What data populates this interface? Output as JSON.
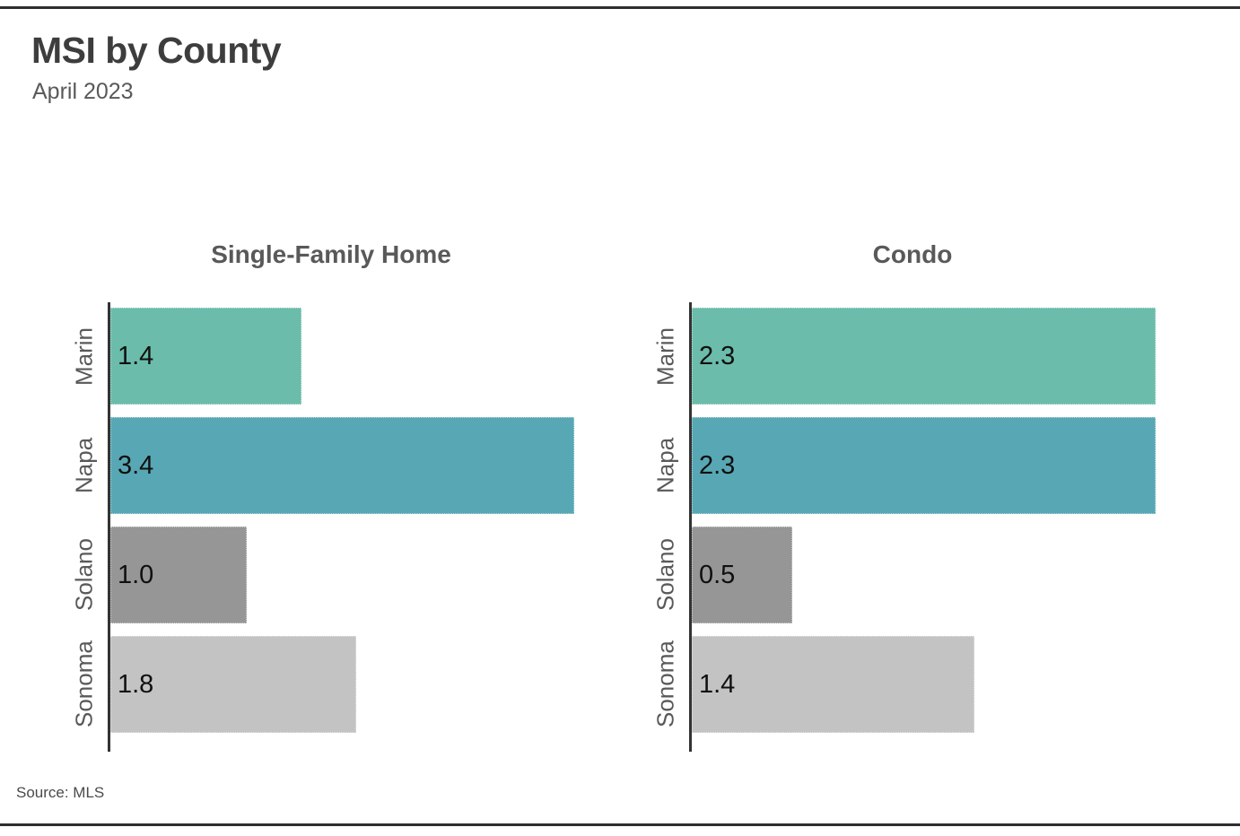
{
  "page": {
    "title": "MSI by County",
    "subtitle": "April 2023",
    "source": "Source: MLS"
  },
  "colors": {
    "teal": "#6bbcab",
    "blue_teal": "#58a7b4",
    "dark_gray": "#969696",
    "light_gray": "#c3c3c3",
    "axis": "#333333",
    "rule": "#2e2e2e",
    "title_text": "#3d3d3d",
    "label_text": "#595959"
  },
  "chart_data": [
    {
      "type": "bar",
      "orientation": "horizontal",
      "title": "Single-Family Home",
      "categories": [
        "Marin",
        "Napa",
        "Solano",
        "Sonoma"
      ],
      "values": [
        1.4,
        3.4,
        1.0,
        1.8
      ],
      "value_labels": [
        "1.4",
        "3.4",
        "1.0",
        "1.8"
      ],
      "bar_colors": [
        "#6bbcab",
        "#58a7b4",
        "#969696",
        "#c3c3c3"
      ],
      "xlim": [
        0,
        3.53
      ],
      "grid": false,
      "legend": "none",
      "value_label_position": "inside-left"
    },
    {
      "type": "bar",
      "orientation": "horizontal",
      "title": "Condo",
      "categories": [
        "Marin",
        "Napa",
        "Solano",
        "Sonoma"
      ],
      "values": [
        2.3,
        2.3,
        0.5,
        1.4
      ],
      "value_labels": [
        "2.3",
        "2.3",
        "0.5",
        "1.4"
      ],
      "bar_colors": [
        "#6bbcab",
        "#58a7b4",
        "#969696",
        "#c3c3c3"
      ],
      "xlim": [
        0,
        2.39
      ],
      "grid": false,
      "legend": "none",
      "value_label_position": "inside-left"
    }
  ]
}
